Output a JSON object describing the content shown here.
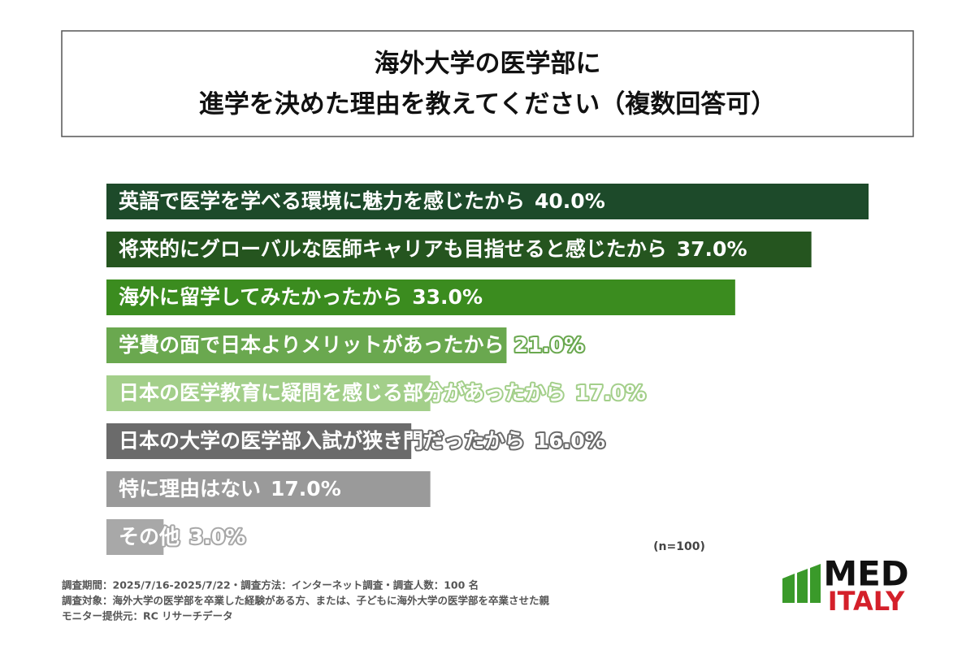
{
  "chart_data": {
    "type": "bar",
    "title": [
      "海外大学の医学部に",
      "進学を決めた理由を教えてください（複数回答可）"
    ],
    "categories": [
      "英語で医学を学べる環境に魅力を感じたから",
      "将来的にグローバルな医師キャリアも目指せると感じたから",
      "海外に留学してみたかったから",
      "学費の面で日本よりメリットがあったから",
      "日本の医学教育に疑問を感じる部分があったから",
      "日本の大学の医学部入試が狭き門だったから",
      "特に理由はない",
      "その他"
    ],
    "values": [
      40,
      37,
      33,
      21,
      17,
      16,
      17,
      3
    ],
    "value_labels": [
      "40.0%",
      "37.0%",
      "33.0%",
      "21.0%",
      "17.0%",
      "16.0%",
      "17.0%",
      "3.0%"
    ],
    "colors": [
      "#1d4a2a",
      "#25551f",
      "#3b8c1f",
      "#6aa84f",
      "#a3cf8a",
      "#6b6b6b",
      "#9a9a9a",
      "#a8a8a8"
    ],
    "note": "(n=100)"
  },
  "footnotes": [
    "調査期間：2025/7/16-2025/7/22・調査方法：インターネット調査・調査人数：100 名",
    "調査対象：海外大学の医学部を卒業した経験がある方、または、子どもに海外大学の医学部を卒業させた親",
    "モニター提供元：RC リサーチデータ"
  ],
  "logo": {
    "top": "MED",
    "bottom": "ITALY"
  }
}
